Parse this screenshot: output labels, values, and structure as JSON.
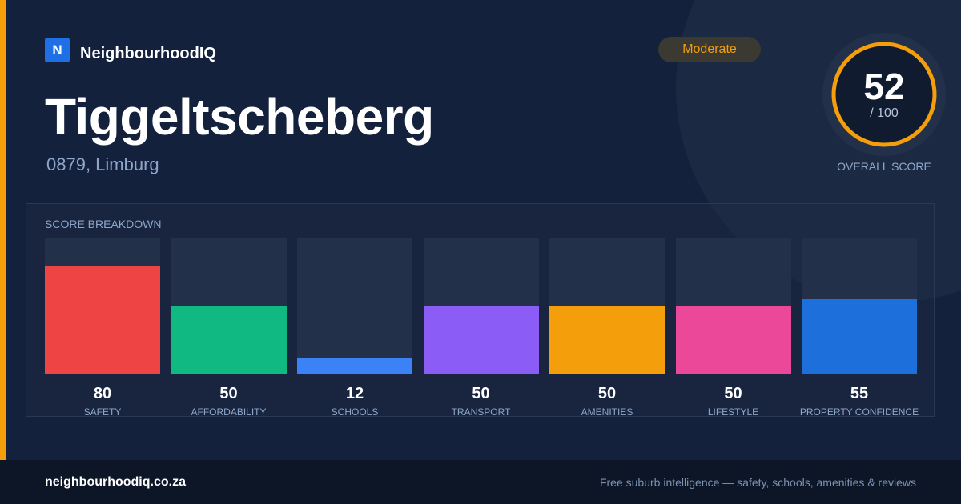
{
  "brand": {
    "logo_letter": "N",
    "name": "NeighbourhoodIQ"
  },
  "suburb": {
    "name": "Tiggeltscheberg",
    "location": "0879, Limburg"
  },
  "badge": {
    "label": "Moderate",
    "color": "#f59e0b"
  },
  "overall_score": {
    "value": "52",
    "max_text": "/ 100",
    "label": "OVERALL SCORE",
    "fraction": 0.52,
    "ring_color": "#f59e0b"
  },
  "breakdown": {
    "title": "SCORE BREAKDOWN",
    "max": 100,
    "items": [
      {
        "label": "SAFETY",
        "value": 80,
        "color": "#ef4444"
      },
      {
        "label": "AFFORDABILITY",
        "value": 50,
        "color": "#10b981"
      },
      {
        "label": "SCHOOLS",
        "value": 12,
        "color": "#3b82f6"
      },
      {
        "label": "TRANSPORT",
        "value": 50,
        "color": "#8b5cf6"
      },
      {
        "label": "AMENITIES",
        "value": 50,
        "color": "#f59e0b"
      },
      {
        "label": "LIFESTYLE",
        "value": 50,
        "color": "#ec4899"
      },
      {
        "label": "PROPERTY CONFIDENCE",
        "value": 55,
        "color": "#1d6fdb"
      }
    ]
  },
  "footer": {
    "url": "neighbourhoodiq.co.za",
    "tagline": "Free suburb intelligence — safety, schools, amenities & reviews"
  },
  "colors": {
    "background": "#14213d",
    "accent": "#f59e0b",
    "footer_background": "#0d1627"
  }
}
